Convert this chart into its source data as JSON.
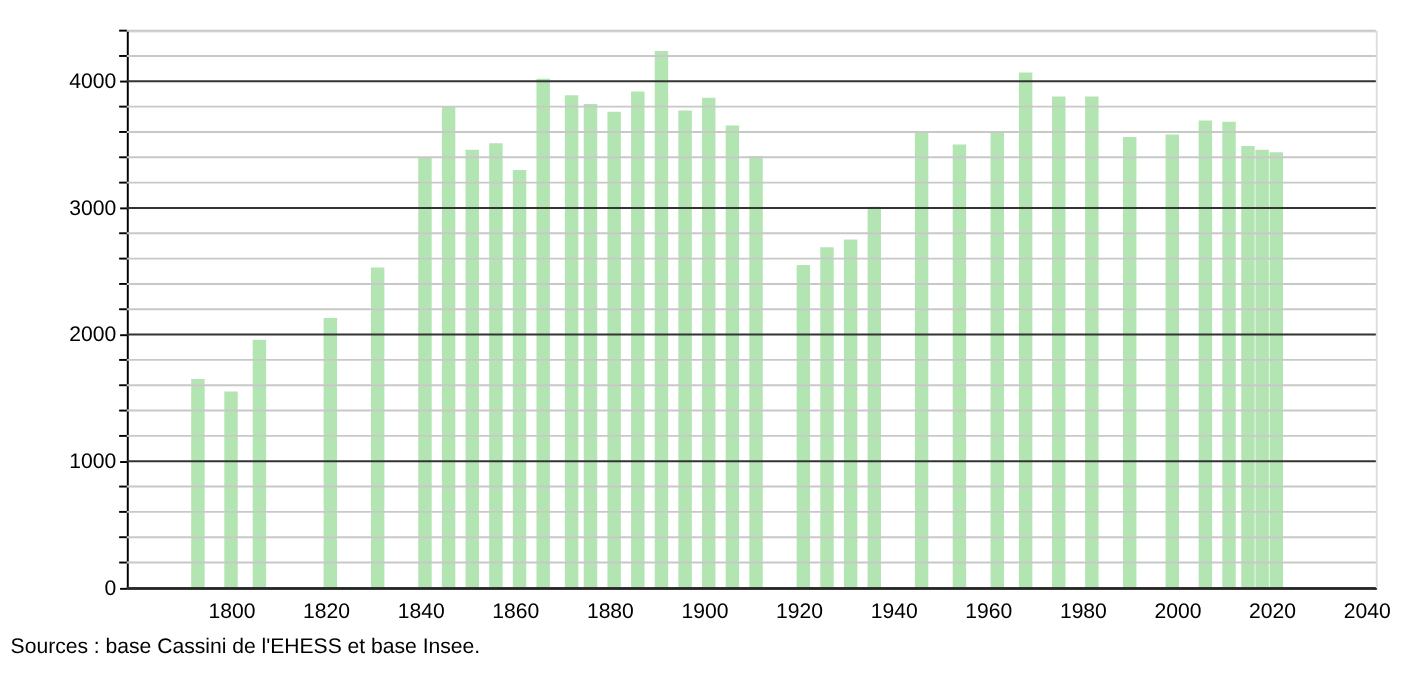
{
  "chart_data": {
    "type": "bar",
    "x": [
      1793,
      1800,
      1806,
      1821,
      1831,
      1841,
      1846,
      1851,
      1856,
      1861,
      1866,
      1872,
      1876,
      1881,
      1886,
      1891,
      1896,
      1901,
      1906,
      1911,
      1921,
      1926,
      1931,
      1936,
      1946,
      1954,
      1962,
      1968,
      1975,
      1982,
      1990,
      1999,
      2006,
      2011,
      2015,
      2018,
      2021
    ],
    "values": [
      1650,
      1550,
      1960,
      2130,
      2530,
      3400,
      3800,
      3460,
      3510,
      3300,
      4020,
      3890,
      3820,
      3760,
      3920,
      4240,
      3770,
      3870,
      3650,
      3410,
      2550,
      2690,
      2750,
      3010,
      3600,
      3500,
      3600,
      4070,
      3880,
      3880,
      3560,
      3580,
      3690,
      3680,
      3490,
      3460,
      3440
    ],
    "color": "#b3e5b3",
    "xlim": [
      1780,
      2040
    ],
    "xticks": [
      1800,
      1820,
      1840,
      1860,
      1880,
      1900,
      1920,
      1940,
      1960,
      1980,
      2000,
      2020,
      2040
    ],
    "ylim": [
      0,
      4400
    ],
    "yticks": [
      0,
      {
        "value": 200,
        "label": null
      },
      {
        "value": 400,
        "label": null
      },
      {
        "value": 600,
        "label": null
      },
      {
        "value": 800,
        "label": null
      },
      1000,
      {
        "value": 1200,
        "label": null
      },
      {
        "value": 1400,
        "label": null
      },
      {
        "value": 1600,
        "label": null
      },
      {
        "value": 1800,
        "label": null
      },
      2000,
      {
        "value": 2200,
        "label": null
      },
      {
        "value": 2400,
        "label": null
      },
      {
        "value": 2600,
        "label": null
      },
      {
        "value": 2800,
        "label": null
      },
      3000,
      {
        "value": 3200,
        "label": null
      },
      {
        "value": 3400,
        "label": null
      },
      {
        "value": 3600,
        "label": null
      },
      {
        "value": 3800,
        "label": null
      },
      4000,
      {
        "value": 4200,
        "label": null
      },
      {
        "value": 4400,
        "label": null
      }
    ],
    "grid": "y",
    "annotations": [
      "Sources : base Cassini de l'EHESS et base Insee."
    ]
  }
}
